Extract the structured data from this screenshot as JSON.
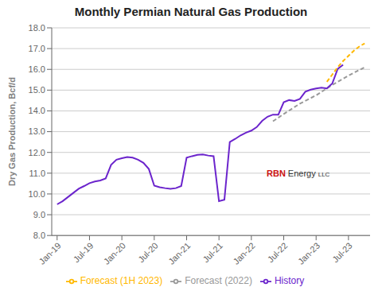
{
  "chart_data": {
    "type": "line",
    "title": "Monthly Permian Natural Gas Production",
    "y_label": "Dry Gas Production, Bcf/d",
    "xlim": [
      -1,
      58
    ],
    "xticks": [
      {
        "value": 0,
        "label": "Jan-19"
      },
      {
        "value": 6,
        "label": "Jul-19"
      },
      {
        "value": 12,
        "label": "Jan-20"
      },
      {
        "value": 18,
        "label": "Jul-20"
      },
      {
        "value": 24,
        "label": "Jan-21"
      },
      {
        "value": 30,
        "label": "Jul-21"
      },
      {
        "value": 36,
        "label": "Jan-22"
      },
      {
        "value": 42,
        "label": "Jul-22"
      },
      {
        "value": 48,
        "label": "Jan-23"
      },
      {
        "value": 54,
        "label": "Jul-23"
      }
    ],
    "ylim": [
      8.0,
      18.0
    ],
    "yticks": [
      {
        "value": 8,
        "label": "8.0"
      },
      {
        "value": 9,
        "label": "9.0"
      },
      {
        "value": 10,
        "label": "10.0"
      },
      {
        "value": 11,
        "label": "11.0"
      },
      {
        "value": 12,
        "label": "12.0"
      },
      {
        "value": 13,
        "label": "13.0"
      },
      {
        "value": 14,
        "label": "14.0"
      },
      {
        "value": 15,
        "label": "15.0"
      },
      {
        "value": 16,
        "label": "16.0"
      },
      {
        "value": 17,
        "label": "17.0"
      },
      {
        "value": 18,
        "label": "18.0"
      }
    ],
    "grid": "y",
    "legend": "bottom",
    "series": [
      {
        "name": "Forecast (2022)",
        "color": "#999999",
        "line_style": "dashed",
        "x": [
          40,
          42,
          45,
          48,
          51,
          54,
          57
        ],
        "values": [
          13.5,
          13.85,
          14.35,
          14.75,
          15.25,
          15.7,
          16.1
        ]
      },
      {
        "name": "History",
        "color": "#6B24CC",
        "line_style": "solid",
        "x": [
          0,
          1,
          2,
          3,
          4,
          5,
          6,
          7,
          8,
          9,
          10,
          11,
          12,
          13,
          14,
          15,
          16,
          17,
          18,
          19,
          20,
          21,
          22,
          23,
          24,
          25,
          26,
          27,
          28,
          29,
          30,
          31,
          32,
          33,
          34,
          35,
          36,
          37,
          38,
          39,
          40,
          41,
          42,
          43,
          44,
          45,
          46,
          47,
          48,
          49,
          50,
          51,
          52,
          53
        ],
        "values": [
          9.5,
          9.65,
          9.85,
          10.05,
          10.25,
          10.38,
          10.52,
          10.6,
          10.65,
          10.75,
          11.4,
          11.65,
          11.72,
          11.78,
          11.75,
          11.65,
          11.5,
          11.2,
          10.4,
          10.32,
          10.28,
          10.25,
          10.28,
          10.38,
          11.75,
          11.82,
          11.88,
          11.9,
          11.85,
          11.82,
          9.65,
          9.72,
          12.5,
          12.65,
          12.82,
          12.95,
          13.05,
          13.22,
          13.52,
          13.72,
          13.82,
          13.82,
          14.42,
          14.52,
          14.48,
          14.58,
          14.92,
          15.02,
          15.08,
          15.12,
          15.08,
          15.32,
          16.02,
          16.22
        ]
      },
      {
        "name": "Forecast (1H 2023)",
        "color": "#FFB800",
        "line_style": "dashed",
        "x": [
          50,
          51,
          52,
          53,
          54,
          55,
          56,
          57
        ],
        "values": [
          15.4,
          15.75,
          16.1,
          16.4,
          16.65,
          16.9,
          17.1,
          17.25
        ]
      }
    ],
    "annotations": [
      {
        "text": "RBN",
        "color": "#cc1111"
      },
      {
        "text": "Energy",
        "color": "#333333"
      },
      {
        "text": "LLC",
        "color": "#333333"
      }
    ]
  }
}
